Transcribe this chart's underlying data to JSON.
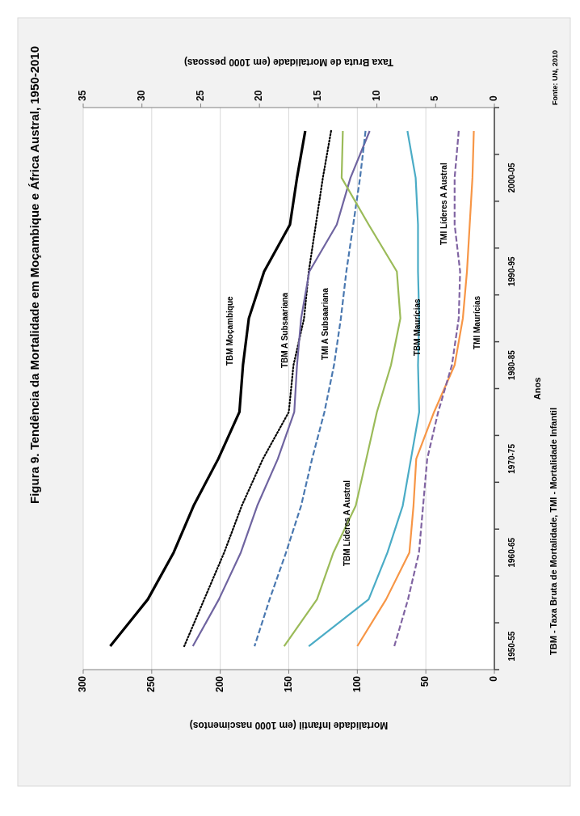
{
  "chart_data": {
    "type": "line",
    "orientation": "horizontal",
    "title": "Figura 9. Tendência da Mortalidade  em Moçambique e África Austral, 1950-2010",
    "ylabel": "Anos",
    "xlabel": "Mortalidade Infantil (em 1000 nascimentos)",
    "x2label": "Taxa Bruta de Mortalidade (em 1000 pessoas)",
    "categories": [
      null,
      "2000-05",
      null,
      "1990-95",
      null,
      "1980-85",
      null,
      "1970-75",
      null,
      "1960-65",
      null,
      "1950-55"
    ],
    "xlim": [
      300,
      0
    ],
    "xticks": [
      300,
      250,
      200,
      150,
      100,
      50,
      0
    ],
    "x2lim": [
      35,
      0
    ],
    "x2ticks": [
      35,
      30,
      25,
      20,
      15,
      10,
      5,
      0
    ],
    "grid": "x",
    "series": [
      {
        "color": "#000000",
        "axis": "x2",
        "line_style": "solid",
        "values": [
          16.1,
          16.8,
          17.4,
          19.6,
          20.9,
          21.4,
          21.7,
          23.5,
          25.6,
          27.3,
          29.5,
          32.7
        ]
      },
      {
        "color": "#000000",
        "axis": "x2",
        "line_style": "dotted",
        "values": [
          13.9,
          14.6,
          15.2,
          15.8,
          16.2,
          17.1,
          17.5,
          19.7,
          21.5,
          23.0,
          24.7,
          26.4
        ]
      },
      {
        "color": "#6f64a0",
        "line_style": "solid",
        "values": [
          91,
          105,
          115,
          135,
          141,
          144,
          146,
          158,
          173,
          185,
          201,
          220
        ]
      },
      {
        "color": "#4a78b0",
        "line_style": "dashed",
        "values": [
          94,
          98,
          103,
          108,
          112,
          117,
          124,
          133,
          141,
          152,
          164,
          175
        ]
      },
      {
        "color": "#9bbb59",
        "axis": "x2",
        "line_style": "solid",
        "values": [
          12.9,
          13.0,
          10.7,
          8.3,
          8.0,
          8.8,
          10.0,
          10.9,
          11.8,
          13.7,
          15.1,
          17.9
        ]
      },
      {
        "color": "#4bacc6",
        "axis": "x2",
        "line_style": "solid",
        "values": [
          7.4,
          6.7,
          6.5,
          6.5,
          6.4,
          6.5,
          6.4,
          7.1,
          7.8,
          9.1,
          10.7,
          15.8
        ]
      },
      {
        "color": "#f79646",
        "line_style": "solid",
        "values": [
          15,
          16,
          18,
          20,
          23,
          29,
          44,
          57,
          59,
          62,
          79,
          100
        ]
      },
      {
        "color": "#8064a2",
        "line_style": "dashed",
        "values": [
          26,
          29,
          29,
          25,
          26,
          31,
          41,
          49,
          52,
          55,
          63,
          73
        ]
      }
    ],
    "annotations": [
      "TBM - Taxa Bruta de Mortalidade, TMI - Mortalidade Infantil",
      "Fonte: UN, 2010",
      "TBM Moçambique",
      "TBM A Subsaariana",
      "TMI A Subsaariana",
      "TBM Líderes  A Austral",
      "TBM Maurícias",
      "TMI Maurícias",
      "TMI Líderes  A Austral"
    ]
  }
}
